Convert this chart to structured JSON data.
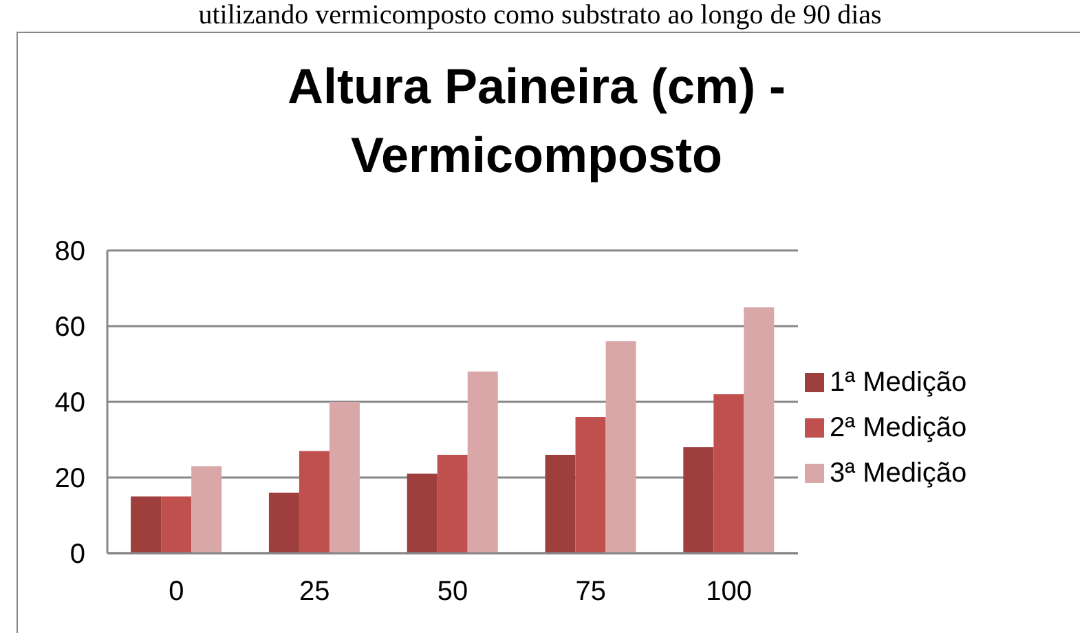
{
  "chart_data": {
    "type": "bar",
    "title": "Altura Paineira (cm) - Vermicomposto",
    "annotations": [
      "utilizando vermicomposto como substrato ao longo de 90 dias"
    ],
    "categories": [
      "0",
      "25",
      "50",
      "75",
      "100"
    ],
    "series": [
      {
        "name": "1ª Medição",
        "color": "#9e3f3d",
        "values": [
          15,
          16,
          21,
          26,
          28
        ]
      },
      {
        "name": "2ª Medição",
        "color": "#c0504d",
        "values": [
          15,
          27,
          26,
          36,
          42
        ]
      },
      {
        "name": "3ª Medição",
        "color": "#d9a7a7",
        "values": [
          23,
          40,
          48,
          56,
          65
        ]
      }
    ],
    "ylim": [
      0,
      80
    ],
    "yticks": [
      0,
      20,
      40,
      60,
      80
    ],
    "grid": "y",
    "legend": "right"
  }
}
